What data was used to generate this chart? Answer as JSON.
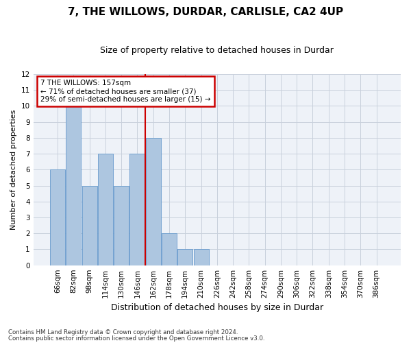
{
  "title": "7, THE WILLOWS, DURDAR, CARLISLE, CA2 4UP",
  "subtitle": "Size of property relative to detached houses in Durdar",
  "xlabel": "Distribution of detached houses by size in Durdar",
  "ylabel": "Number of detached properties",
  "categories": [
    "66sqm",
    "82sqm",
    "98sqm",
    "114sqm",
    "130sqm",
    "146sqm",
    "162sqm",
    "178sqm",
    "194sqm",
    "210sqm",
    "226sqm",
    "242sqm",
    "258sqm",
    "274sqm",
    "290sqm",
    "306sqm",
    "322sqm",
    "338sqm",
    "354sqm",
    "370sqm",
    "386sqm"
  ],
  "values": [
    6,
    10,
    5,
    7,
    5,
    7,
    8,
    2,
    1,
    1,
    0,
    0,
    0,
    0,
    0,
    0,
    0,
    0,
    0,
    0,
    0
  ],
  "bar_color": "#adc6e0",
  "bar_edge_color": "#6699cc",
  "vline_x": 5.5,
  "annotation_line1": "7 THE WILLOWS: 157sqm",
  "annotation_line2": "← 71% of detached houses are smaller (37)",
  "annotation_line3": "29% of semi-detached houses are larger (15) →",
  "annotation_box_color": "#ffffff",
  "annotation_box_edge": "#cc0000",
  "vline_color": "#cc0000",
  "ylim": [
    0,
    12
  ],
  "yticks": [
    0,
    1,
    2,
    3,
    4,
    5,
    6,
    7,
    8,
    9,
    10,
    11,
    12
  ],
  "grid_color": "#c8d0dc",
  "background_color": "#eef2f8",
  "footnote1": "Contains HM Land Registry data © Crown copyright and database right 2024.",
  "footnote2": "Contains public sector information licensed under the Open Government Licence v3.0.",
  "title_fontsize": 11,
  "subtitle_fontsize": 9,
  "tick_fontsize": 7.5,
  "ylabel_fontsize": 8,
  "xlabel_fontsize": 9,
  "annotation_fontsize": 7.5
}
